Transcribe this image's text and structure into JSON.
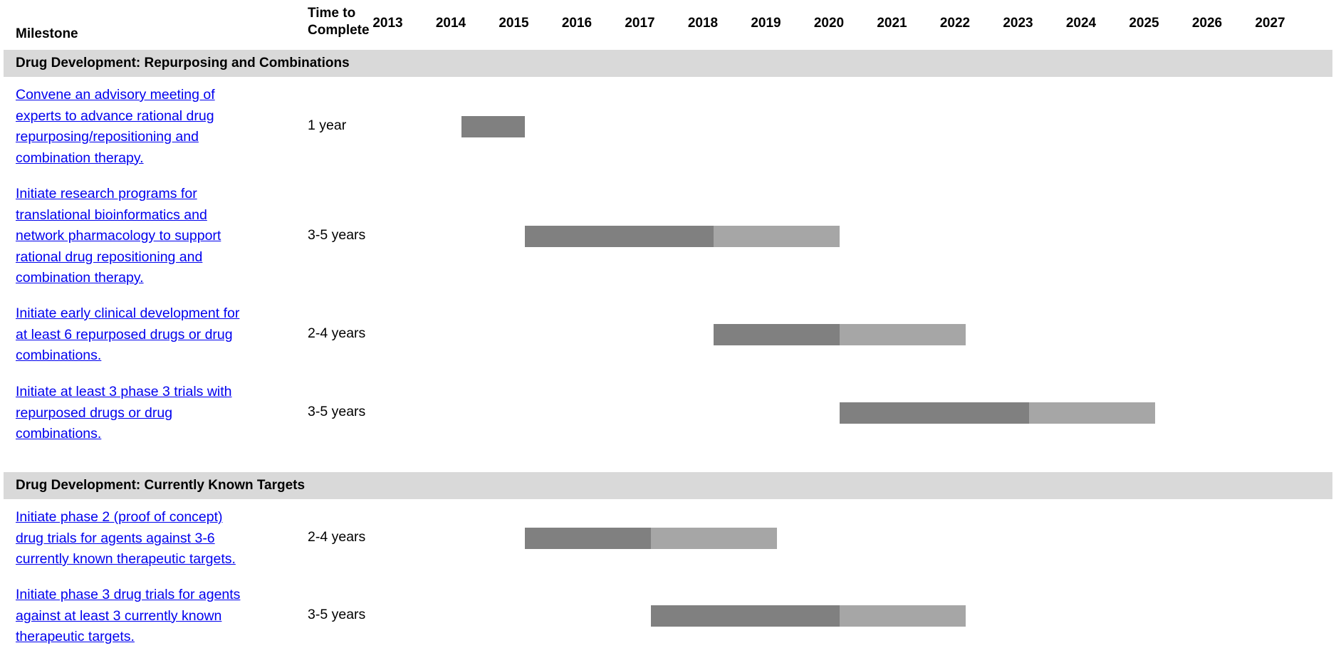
{
  "header": {
    "milestone": "Milestone",
    "time_line1": "Time to",
    "time_line2": "Complete"
  },
  "chart_data": {
    "type": "gantt",
    "years": [
      2013,
      2014,
      2015,
      2016,
      2017,
      2018,
      2019,
      2020,
      2021,
      2022,
      2023,
      2024,
      2025,
      2026,
      2027
    ],
    "legend": "none",
    "colors": {
      "firm": "#808080",
      "extension": "#a6a6a6",
      "section": "#d9d9d9",
      "link": "#0000ee"
    },
    "sections": [
      {
        "title": "Drug Development:  Repurposing and Combinations",
        "rows": [
          {
            "lines": [
              "Convene an advisory meeting of",
              "experts to advance rational drug",
              "repurposing/repositioning and",
              "combination therapy."
            ],
            "duration": "1 year",
            "start": 2014.0,
            "firm_end": 2015.0,
            "max_end": 2015.0
          },
          {
            "lines": [
              "Initiate research programs for",
              "translational bioinformatics and",
              "network pharmacology to support",
              "rational drug repositioning and",
              "combination therapy."
            ],
            "duration": "3-5 years",
            "start": 2015.0,
            "firm_end": 2018.0,
            "max_end": 2020.0
          },
          {
            "lines": [
              "Initiate early clinical development for",
              "at least 6 repurposed drugs or drug",
              "combinations."
            ],
            "duration": "2-4 years",
            "start": 2018.0,
            "firm_end": 2020.0,
            "max_end": 2022.0
          },
          {
            "lines": [
              "Initiate at least 3 phase 3 trials with",
              "repurposed drugs or drug",
              "combinations."
            ],
            "duration": "3-5 years",
            "start": 2020.0,
            "firm_end": 2023.0,
            "max_end": 2025.0
          }
        ]
      },
      {
        "title": "Drug Development:  Currently Known Targets",
        "rows": [
          {
            "lines": [
              "Initiate phase 2 (proof of concept)",
              "drug trials for agents against 3-6",
              "currently known therapeutic targets."
            ],
            "duration": "2-4 years",
            "start": 2015.0,
            "firm_end": 2017.0,
            "max_end": 2019.0
          },
          {
            "lines": [
              "Initiate phase 3 drug trials for agents",
              "against at least 3 currently known",
              "therapeutic targets."
            ],
            "duration": "3-5 years",
            "start": 2017.0,
            "firm_end": 2020.0,
            "max_end": 2022.0
          }
        ]
      }
    ]
  }
}
